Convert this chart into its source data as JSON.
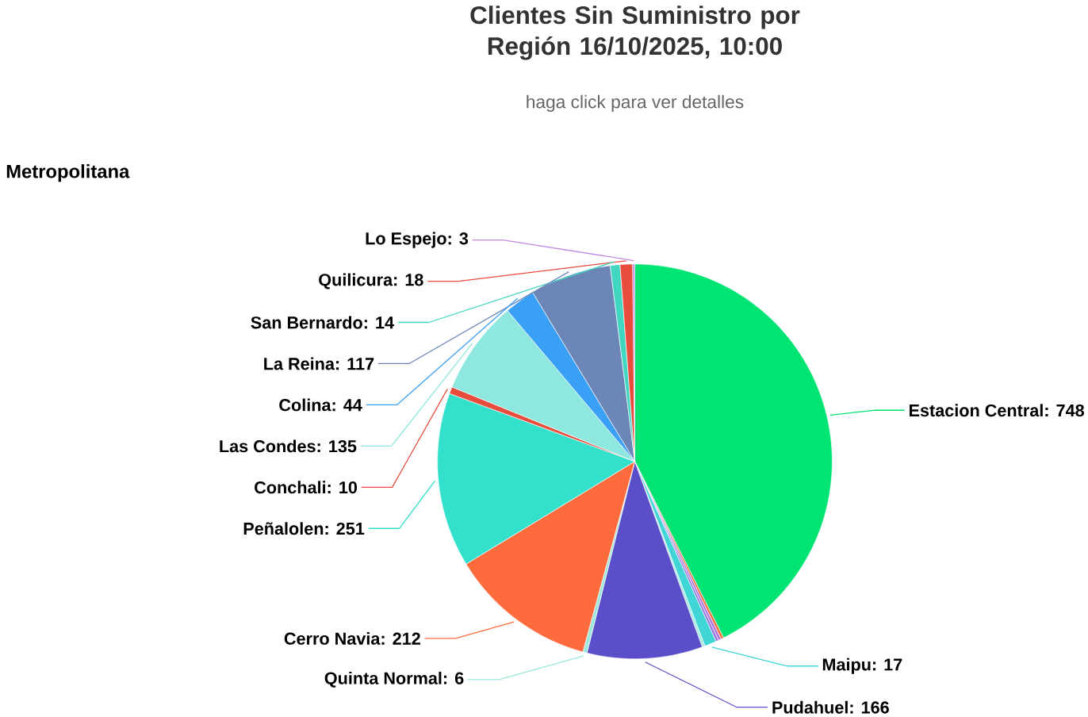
{
  "chart_data": {
    "type": "pie",
    "title": "Clientes Sin Suministro por Región 16/10/2025, 10:00",
    "subtitle": "haga click para ver detalles",
    "annotations": [
      "Metropolitana"
    ],
    "categories": [
      "Estacion Central",
      null,
      null,
      null,
      "Maipu",
      null,
      "Pudahuel",
      "Quinta Normal",
      "Cerro Navia",
      "Peñalolen",
      "Conchali",
      "Las Condes",
      "Colina",
      "La Reina",
      "San Bernardo",
      "Quilicura",
      "Lo Espejo"
    ],
    "values": [
      748,
      4,
      4,
      4,
      17,
      4,
      166,
      6,
      212,
      251,
      10,
      135,
      44,
      117,
      14,
      18,
      3
    ],
    "value_labels": [
      ": 748",
      null,
      null,
      null,
      ": 17",
      null,
      ": 166",
      ": 6",
      ": 212",
      ": 251",
      ": 10",
      ": 135",
      ": 44",
      ": 117",
      ": 14",
      ": 18",
      ": 3"
    ],
    "colors": [
      "#00e473",
      "#f0703c",
      "#b374e0",
      "#9a7ae0",
      "#40d6d6",
      "#a8ebe3",
      "#5a4fc9",
      "#9de8dc",
      "#ff6b3d",
      "#33e0cb",
      "#e84c3d",
      "#8ee8df",
      "#3aa0f5",
      "#6c86b8",
      "#40d6c0",
      "#e84c3d",
      "#c08be0"
    ]
  }
}
